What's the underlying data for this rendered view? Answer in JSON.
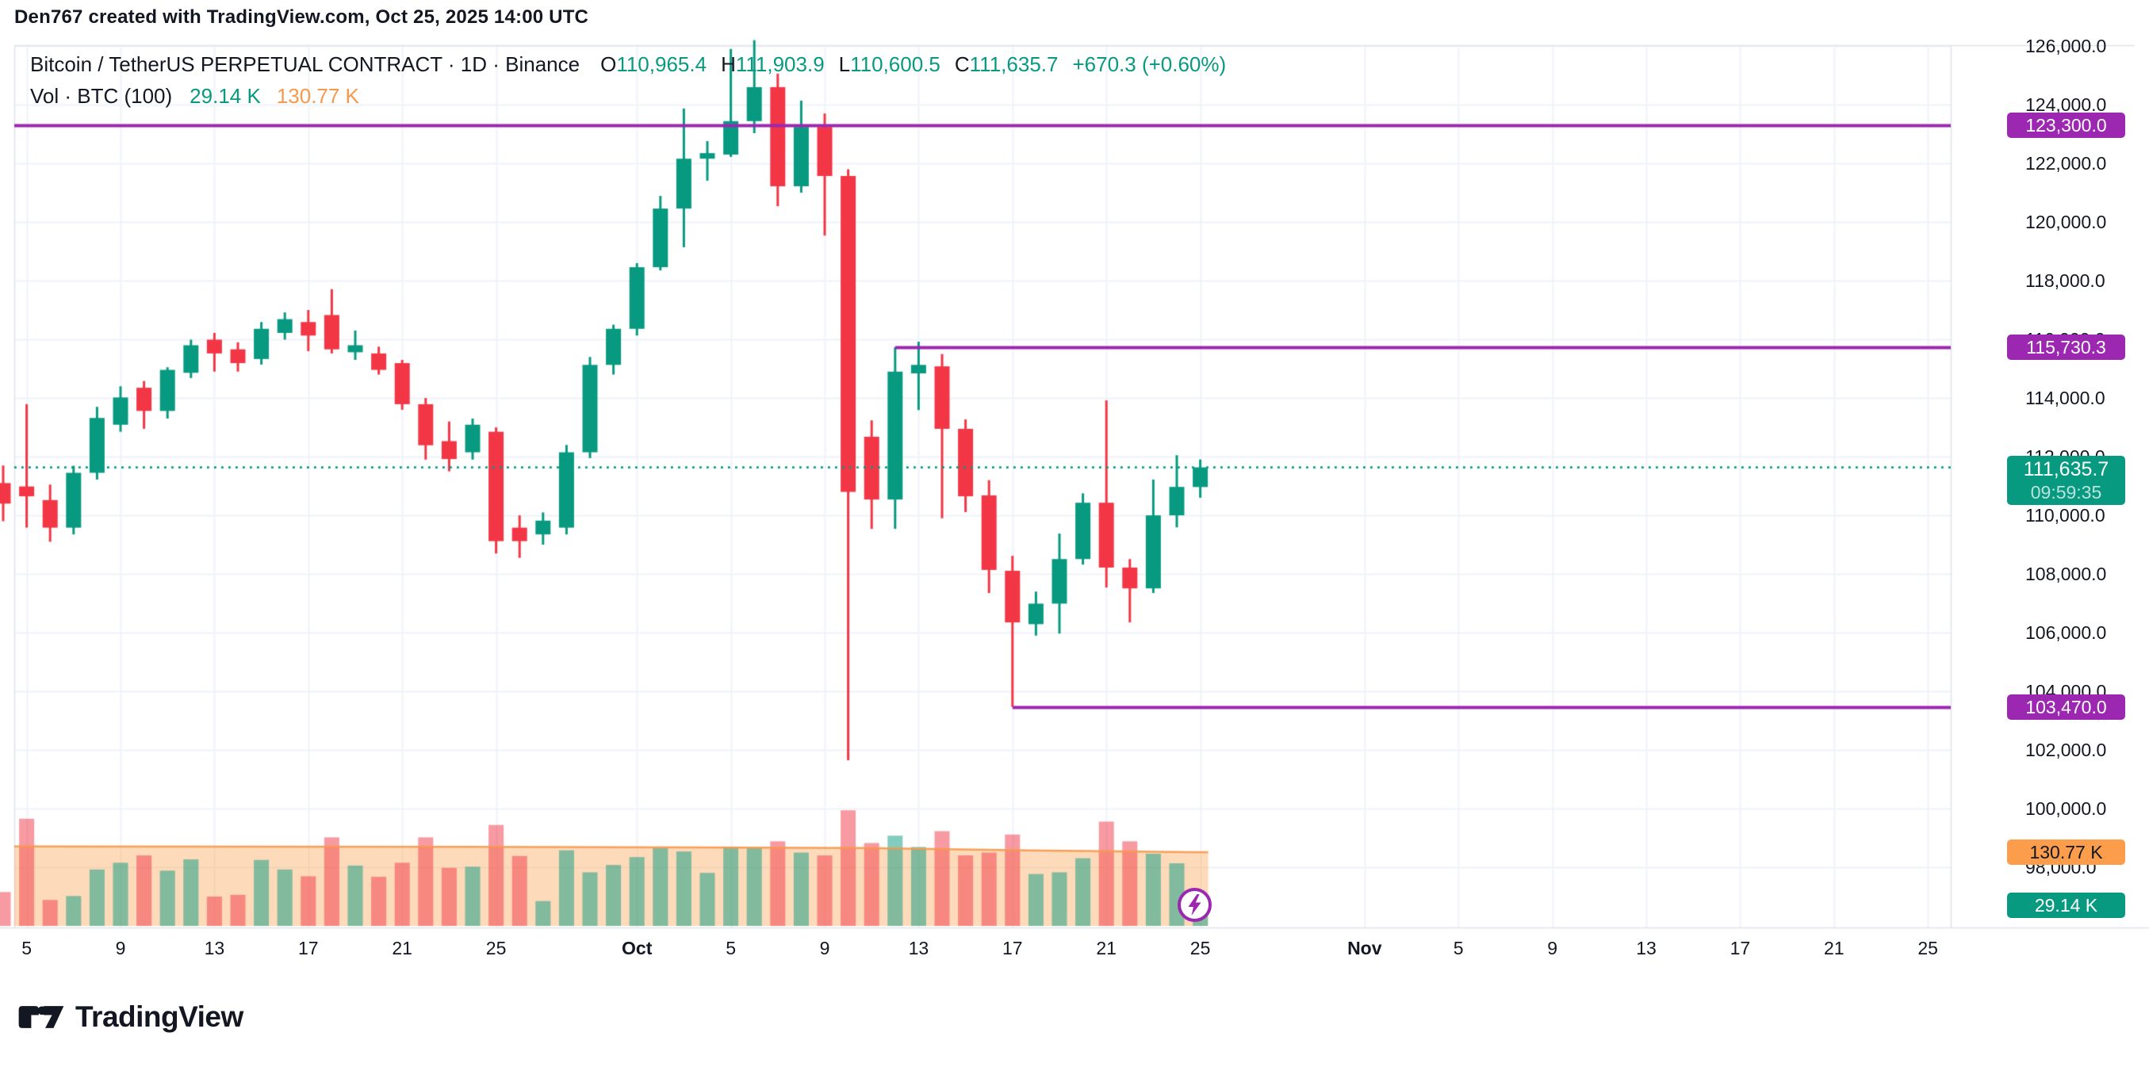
{
  "header": {
    "attribution": "Den767 created with TradingView.com, Oct 25, 2025 14:00 UTC"
  },
  "legend": {
    "symbol": "Bitcoin / TetherUS PERPETUAL CONTRACT · 1D · Binance",
    "ohlc": [
      {
        "label": "O",
        "value": "110,965.4"
      },
      {
        "label": "H",
        "value": "111,903.9"
      },
      {
        "label": "L",
        "value": "110,600.5"
      },
      {
        "label": "C",
        "value": "111,635.7"
      }
    ],
    "change": "+670.3 (+0.60%)",
    "volume_row": {
      "label": "Vol · BTC (100)",
      "value": "29.14 K",
      "ma_value": "130.77 K"
    }
  },
  "axis": {
    "price_ticks": [
      {
        "label": "126,000.0",
        "price": 126000
      },
      {
        "label": "124,000.0",
        "price": 124000
      },
      {
        "label": "122,000.0",
        "price": 122000
      },
      {
        "label": "120,000.0",
        "price": 120000
      },
      {
        "label": "118,000.0",
        "price": 118000
      },
      {
        "label": "116,000.0",
        "price": 116000
      },
      {
        "label": "114,000.0",
        "price": 114000
      },
      {
        "label": "112,000.0",
        "price": 112000
      },
      {
        "label": "110,000.0",
        "price": 110000
      },
      {
        "label": "108,000.0",
        "price": 108000
      },
      {
        "label": "106,000.0",
        "price": 106000
      },
      {
        "label": "104,000.0",
        "price": 104000
      },
      {
        "label": "102,000.0",
        "price": 102000
      },
      {
        "label": "100,000.0",
        "price": 100000
      },
      {
        "label": "98,000.0",
        "price": 98000
      }
    ],
    "date_ticks": [
      {
        "label": "5",
        "i": 1,
        "bold": false
      },
      {
        "label": "9",
        "i": 5,
        "bold": false
      },
      {
        "label": "13",
        "i": 9,
        "bold": false
      },
      {
        "label": "17",
        "i": 13,
        "bold": false
      },
      {
        "label": "21",
        "i": 17,
        "bold": false
      },
      {
        "label": "25",
        "i": 21,
        "bold": false
      },
      {
        "label": "Oct",
        "i": 27,
        "bold": true
      },
      {
        "label": "5",
        "i": 31,
        "bold": false
      },
      {
        "label": "9",
        "i": 35,
        "bold": false
      },
      {
        "label": "13",
        "i": 39,
        "bold": false
      },
      {
        "label": "17",
        "i": 43,
        "bold": false
      },
      {
        "label": "21",
        "i": 47,
        "bold": false
      },
      {
        "label": "25",
        "i": 51,
        "bold": false
      },
      {
        "label": "Nov",
        "i": 58,
        "bold": true
      },
      {
        "label": "5",
        "i": 62,
        "bold": false
      },
      {
        "label": "9",
        "i": 66,
        "bold": false
      },
      {
        "label": "13",
        "i": 70,
        "bold": false
      },
      {
        "label": "17",
        "i": 74,
        "bold": false
      },
      {
        "label": "21",
        "i": 78,
        "bold": false
      },
      {
        "label": "25",
        "i": 82,
        "bold": false
      }
    ]
  },
  "footer": {
    "logo_text": "TradingView"
  },
  "chart_data": {
    "type": "candlestick+volume",
    "title": "Bitcoin / TetherUS PERPETUAL CONTRACT",
    "interval": "1D",
    "exchange": "Binance",
    "ylim": [
      98000,
      126700
    ],
    "y_tick_step": 2000,
    "grid": true,
    "columns": [
      "date",
      "open",
      "high",
      "low",
      "close",
      "volume_K"
    ],
    "candles": [
      [
        "Sep 4",
        111100,
        111700,
        109800,
        110400,
        60
      ],
      [
        "Sep 5",
        110985,
        113790,
        109580,
        110650,
        190
      ],
      [
        "Sep 6",
        110520,
        111050,
        109100,
        109580,
        46
      ],
      [
        "Sep 7",
        109580,
        111690,
        109350,
        111450,
        53
      ],
      [
        "Sep 8",
        111450,
        113700,
        111220,
        113320,
        100
      ],
      [
        "Sep 9",
        113090,
        114400,
        112850,
        114020,
        112
      ],
      [
        "Sep 10",
        114350,
        114580,
        112950,
        113560,
        125
      ],
      [
        "Sep 11",
        113560,
        115050,
        113300,
        114960,
        98
      ],
      [
        "Sep 12",
        114860,
        115990,
        114680,
        115800,
        118
      ],
      [
        "Sep 13",
        115990,
        116220,
        114900,
        115520,
        52
      ],
      [
        "Sep 14",
        115660,
        115900,
        114900,
        115190,
        55
      ],
      [
        "Sep 15",
        115330,
        116590,
        115140,
        116360,
        117
      ],
      [
        "Sep 16",
        116220,
        116920,
        115990,
        116690,
        100
      ],
      [
        "Sep 17",
        116590,
        117000,
        115600,
        116130,
        88
      ],
      [
        "Sep 18",
        116830,
        117710,
        115520,
        115660,
        157
      ],
      [
        "Sep 19",
        115560,
        116300,
        115300,
        115800,
        107
      ],
      [
        "Sep 20",
        115520,
        115750,
        114800,
        114960,
        87
      ],
      [
        "Sep 21",
        115190,
        115300,
        113600,
        113790,
        112
      ],
      [
        "Sep 22",
        113790,
        114000,
        111900,
        112390,
        157
      ],
      [
        "Sep 23",
        112530,
        113200,
        111500,
        111920,
        103
      ],
      [
        "Sep 24",
        112150,
        113300,
        111900,
        113090,
        105
      ],
      [
        "Sep 25",
        112850,
        113000,
        108700,
        109120,
        179
      ],
      [
        "Sep 26",
        109580,
        110000,
        108550,
        109120,
        124
      ],
      [
        "Sep 27",
        109350,
        110100,
        109000,
        109820,
        44
      ],
      [
        "Sep 28",
        109580,
        112400,
        109350,
        112150,
        134
      ],
      [
        "Sep 29",
        112150,
        115400,
        111950,
        115130,
        95
      ],
      [
        "Sep 30",
        115130,
        116500,
        114800,
        116360,
        108
      ],
      [
        "Oct 1",
        116360,
        118600,
        116130,
        118460,
        122
      ],
      [
        "Oct 2",
        118460,
        120890,
        118350,
        120460,
        138
      ],
      [
        "Oct 3",
        120460,
        123870,
        119140,
        122160,
        132
      ],
      [
        "Oct 4",
        122160,
        122760,
        121410,
        122350,
        94
      ],
      [
        "Oct 5",
        122300,
        125900,
        122220,
        123440,
        140
      ],
      [
        "Oct 6",
        123440,
        126200,
        123030,
        124600,
        138
      ],
      [
        "Oct 7",
        124600,
        125060,
        120540,
        121220,
        150
      ],
      [
        "Oct 8",
        121220,
        124140,
        121000,
        123240,
        130
      ],
      [
        "Oct 9",
        123240,
        123700,
        119540,
        121570,
        125
      ],
      [
        "Oct 10",
        121570,
        121800,
        101650,
        110800,
        205
      ],
      [
        "Oct 11",
        112680,
        113240,
        109540,
        110540,
        147
      ],
      [
        "Oct 12",
        110540,
        115730.3,
        109540,
        114900,
        160
      ],
      [
        "Oct 13",
        114840,
        115920,
        113590,
        115130,
        140
      ],
      [
        "Oct 14",
        115080,
        115500,
        109900,
        112950,
        168
      ],
      [
        "Oct 15",
        112950,
        113270,
        110110,
        110650,
        125
      ],
      [
        "Oct 16",
        110680,
        111200,
        107350,
        108140,
        130
      ],
      [
        "Oct 17",
        108110,
        108620,
        103470,
        106350,
        162
      ],
      [
        "Oct 18",
        106290,
        107400,
        105900,
        106990,
        92
      ],
      [
        "Oct 19",
        106990,
        109380,
        105970,
        108510,
        95
      ],
      [
        "Oct 20",
        108510,
        110750,
        108320,
        110430,
        120
      ],
      [
        "Oct 21",
        110430,
        113920,
        107540,
        108220,
        185
      ],
      [
        "Oct 22",
        108220,
        108510,
        106350,
        107510,
        150
      ],
      [
        "Oct 23",
        107510,
        111220,
        107350,
        110000,
        128
      ],
      [
        "Oct 24",
        110000,
        112050,
        109590,
        110970,
        111
      ],
      [
        "Oct 25",
        110965.4,
        111903.9,
        110600.5,
        111635.7,
        29.14
      ]
    ],
    "horizontal_lines": [
      {
        "price": 123300.0,
        "label": "123,300.0",
        "start_index": 0
      },
      {
        "price": 115730.3,
        "label": "115,730.3",
        "start_index": 38
      },
      {
        "price": 103470.0,
        "label": "103,470.0",
        "start_index": 43
      }
    ],
    "current_price": {
      "value": 111635.7,
      "label": "111,635.7",
      "countdown": "09:59:35"
    },
    "volume_indicator": {
      "current_K": 29.14,
      "current_label": "29.14 K",
      "ma_label": "130.77 K",
      "ma_current_K": 130.77,
      "ma_points": [
        [
          0,
          141
        ],
        [
          10,
          140.6
        ],
        [
          20,
          140.2
        ],
        [
          30,
          139.3
        ],
        [
          37,
          138
        ],
        [
          40,
          136.5
        ],
        [
          44,
          134
        ],
        [
          48,
          132
        ],
        [
          51,
          130.77
        ]
      ]
    },
    "colors": {
      "up": "#089981",
      "down": "#f23645",
      "level_line": "#9c27b0",
      "volume_ma": "#f7984a",
      "grid": "#f0f3fa",
      "border": "#e0e3eb",
      "text": "#131722"
    },
    "legend_position": "top-left"
  }
}
